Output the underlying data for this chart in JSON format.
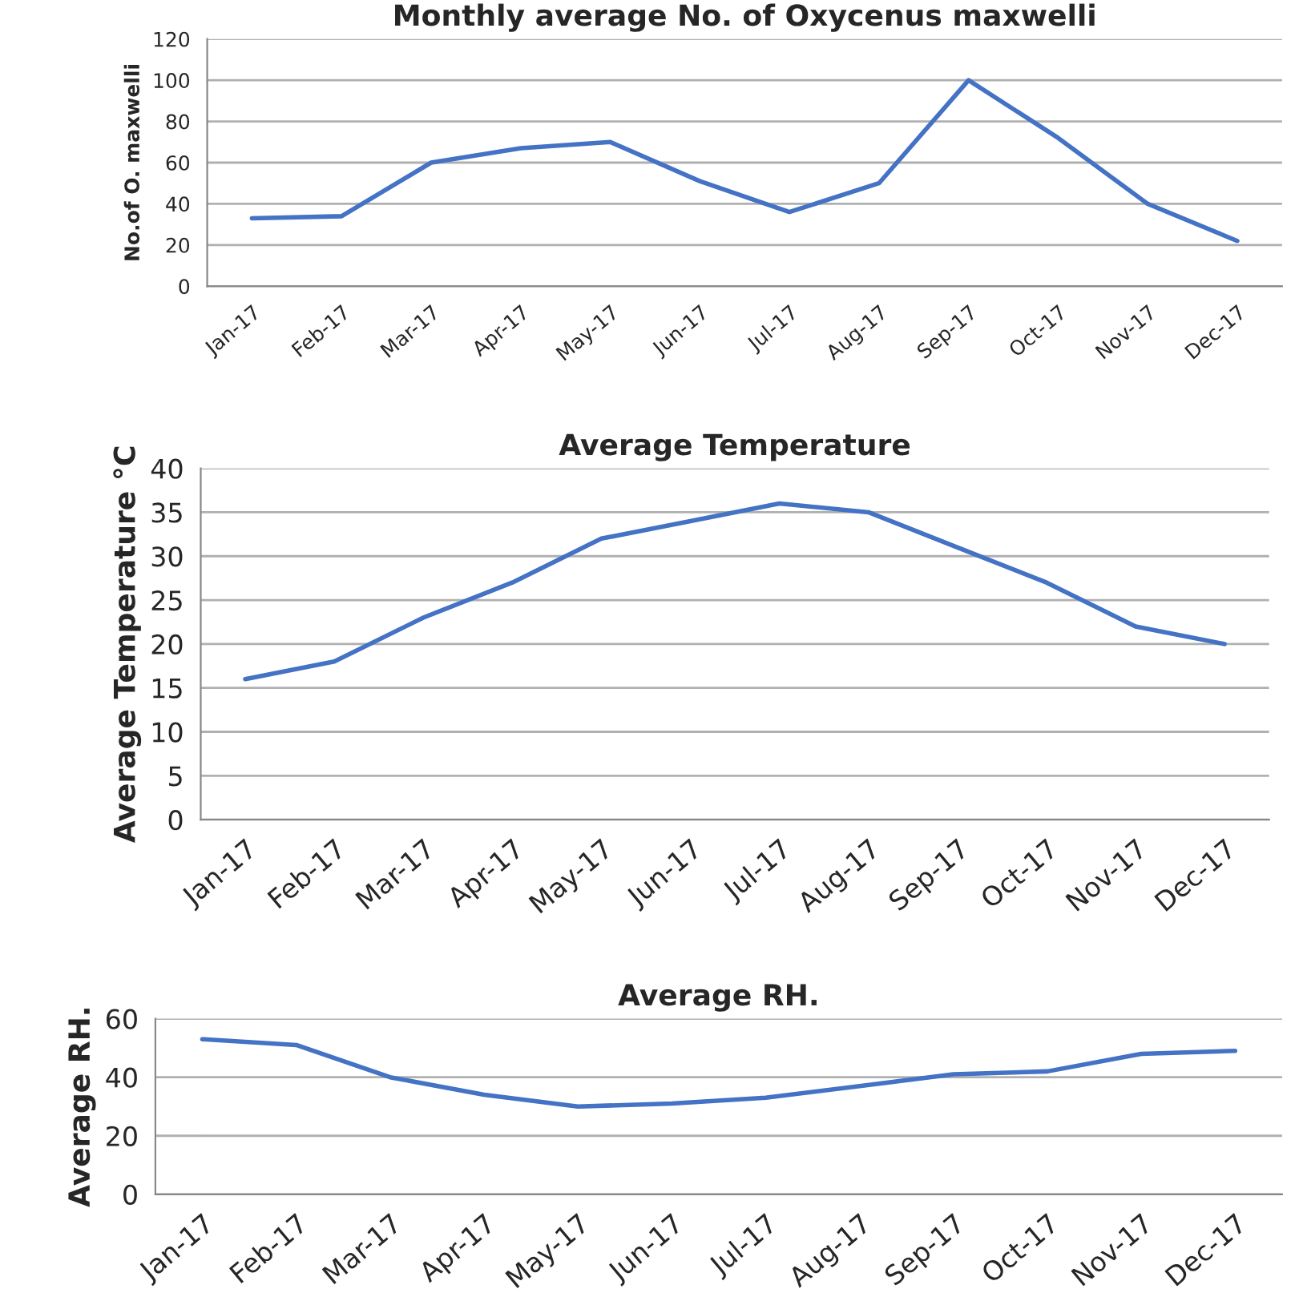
{
  "chart_data": [
    {
      "type": "line",
      "title": "Monthly average No. of Oxycenus maxwelli",
      "ylabel": "No.of O. maxwelli",
      "categories": [
        "Jan-17",
        "Feb-17",
        "Mar-17",
        "Apr-17",
        "May-17",
        "Jun-17",
        "Jul-17",
        "Aug-17",
        "Sep-17",
        "Oct-17",
        "Nov-17",
        "Dec-17"
      ],
      "series": [
        {
          "color": "#4472c4",
          "values": [
            33,
            34,
            60,
            67,
            70,
            51,
            36,
            50,
            100,
            72,
            40,
            22
          ]
        }
      ],
      "ylim": [
        0,
        120
      ],
      "yticks": [
        0,
        20,
        40,
        60,
        80,
        100,
        120
      ],
      "grid": "y"
    },
    {
      "type": "line",
      "title": "Average Temperature",
      "ylabel": "Average Temperature °C",
      "categories": [
        "Jan-17",
        "Feb-17",
        "Mar-17",
        "Apr-17",
        "May-17",
        "Jun-17",
        "Jul-17",
        "Aug-17",
        "Sep-17",
        "Oct-17",
        "Nov-17",
        "Dec-17"
      ],
      "series": [
        {
          "color": "#4472c4",
          "values": [
            16,
            18,
            23,
            27,
            32,
            34,
            36,
            35,
            31,
            27,
            22,
            20
          ]
        }
      ],
      "ylim": [
        0,
        40
      ],
      "yticks": [
        0,
        5,
        10,
        15,
        20,
        25,
        30,
        35,
        40
      ],
      "grid": "y"
    },
    {
      "type": "line",
      "title": "Average RH.",
      "ylabel": "Average RH.",
      "categories": [
        "Jan-17",
        "Feb-17",
        "Mar-17",
        "Apr-17",
        "May-17",
        "Jun-17",
        "Jul-17",
        "Aug-17",
        "Sep-17",
        "Oct-17",
        "Nov-17",
        "Dec-17"
      ],
      "series": [
        {
          "color": "#4472c4",
          "values": [
            53,
            51,
            40,
            34,
            30,
            31,
            33,
            37,
            41,
            42,
            48,
            49
          ]
        }
      ],
      "ylim": [
        0,
        60
      ],
      "yticks": [
        0,
        20,
        40,
        60
      ],
      "grid": "y"
    }
  ]
}
